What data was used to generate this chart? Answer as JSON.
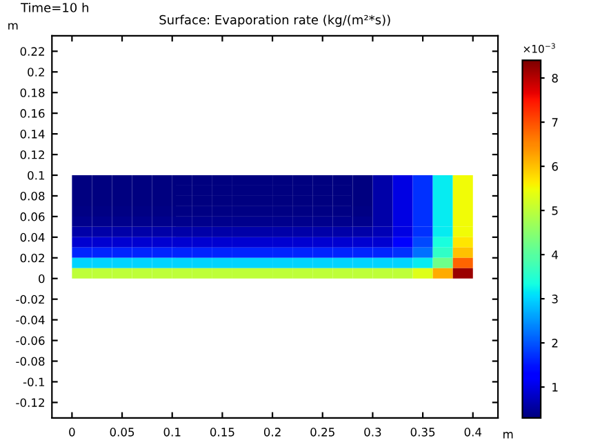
{
  "chart_data": {
    "type": "heatmap",
    "title": "Surface: Evaporation rate (kg/(m²*s))",
    "subtitle": "Time=10 h",
    "xlabel": "m",
    "ylabel": "m",
    "clabel": "×10$^{−3}$",
    "x": [
      0.01,
      0.03,
      0.05,
      0.07,
      0.09,
      0.11,
      0.13,
      0.15,
      0.17,
      0.19,
      0.21,
      0.23,
      0.25,
      0.27,
      0.29,
      0.31,
      0.33,
      0.35,
      0.37,
      0.39
    ],
    "y": [
      0.095,
      0.085,
      0.075,
      0.065,
      0.055,
      0.045,
      0.035,
      0.025,
      0.015,
      0.005
    ],
    "cells": [
      [
        0.3,
        0.3,
        0.3,
        0.3,
        0.3,
        0.3,
        0.3,
        0.3,
        0.3,
        0.3,
        0.3,
        0.3,
        0.3,
        0.3,
        0.3,
        0.6,
        1.0,
        1.7,
        3.2,
        5.5
      ],
      [
        0.3,
        0.3,
        0.3,
        0.3,
        0.3,
        0.3,
        0.3,
        0.3,
        0.3,
        0.3,
        0.3,
        0.3,
        0.3,
        0.3,
        0.3,
        0.6,
        1.0,
        1.7,
        3.2,
        5.5
      ],
      [
        0.3,
        0.3,
        0.3,
        0.3,
        0.3,
        0.3,
        0.3,
        0.3,
        0.3,
        0.3,
        0.3,
        0.3,
        0.3,
        0.3,
        0.3,
        0.6,
        1.0,
        1.7,
        3.2,
        5.5
      ],
      [
        0.35,
        0.35,
        0.35,
        0.35,
        0.35,
        0.35,
        0.35,
        0.35,
        0.35,
        0.35,
        0.35,
        0.35,
        0.35,
        0.35,
        0.35,
        0.6,
        1.0,
        1.7,
        3.2,
        5.5
      ],
      [
        0.4,
        0.4,
        0.4,
        0.4,
        0.4,
        0.4,
        0.4,
        0.4,
        0.4,
        0.4,
        0.4,
        0.4,
        0.4,
        0.4,
        0.4,
        0.6,
        1.0,
        1.7,
        3.2,
        5.5
      ],
      [
        0.6,
        0.6,
        0.6,
        0.6,
        0.6,
        0.6,
        0.6,
        0.6,
        0.6,
        0.6,
        0.6,
        0.6,
        0.6,
        0.6,
        0.6,
        0.7,
        1.0,
        1.7,
        3.2,
        5.5
      ],
      [
        0.9,
        0.9,
        0.9,
        0.9,
        0.9,
        0.9,
        0.9,
        0.9,
        0.9,
        0.9,
        0.9,
        0.9,
        0.9,
        0.9,
        0.9,
        0.9,
        1.2,
        1.9,
        3.4,
        5.7
      ],
      [
        1.6,
        1.6,
        1.6,
        1.6,
        1.6,
        1.6,
        1.6,
        1.6,
        1.6,
        1.6,
        1.6,
        1.6,
        1.6,
        1.6,
        1.6,
        1.6,
        1.7,
        2.2,
        3.6,
        6.0
      ],
      [
        3.0,
        3.0,
        3.0,
        3.0,
        3.0,
        3.0,
        3.0,
        3.0,
        3.0,
        3.0,
        3.0,
        3.0,
        3.0,
        3.0,
        3.0,
        3.0,
        3.0,
        3.2,
        4.2,
        6.8
      ],
      [
        5.0,
        5.0,
        5.0,
        5.0,
        5.0,
        5.0,
        5.0,
        5.0,
        5.0,
        5.0,
        5.0,
        5.0,
        5.0,
        5.0,
        5.0,
        5.0,
        5.0,
        5.3,
        6.2,
        8.2
      ]
    ],
    "clim": [
      0.3,
      8.4
    ],
    "cticks": [
      1,
      2,
      3,
      4,
      5,
      6,
      7,
      8
    ],
    "xlim": [
      -0.02,
      0.425
    ],
    "ylim": [
      -0.135,
      0.235
    ],
    "xticks": [
      0,
      0.05,
      0.1,
      0.15,
      0.2,
      0.25,
      0.3,
      0.35,
      0.4
    ],
    "yticks": [
      -0.12,
      -0.1,
      -0.08,
      -0.06,
      -0.04,
      -0.02,
      0,
      0.02,
      0.04,
      0.06,
      0.08,
      0.1,
      0.12,
      0.14,
      0.16,
      0.18,
      0.2,
      0.22
    ],
    "grid": false
  }
}
